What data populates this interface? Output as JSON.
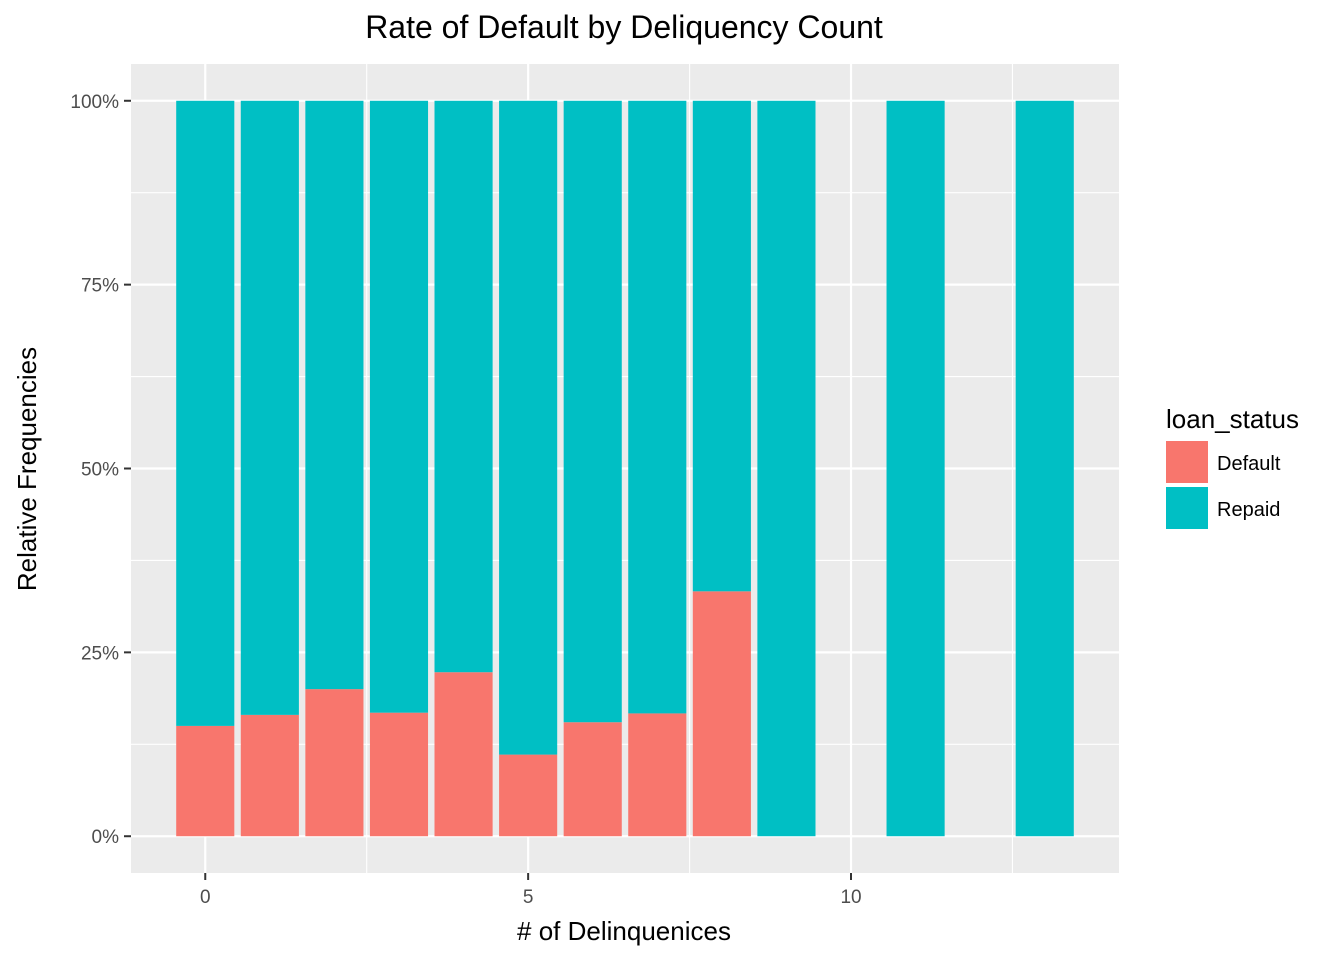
{
  "chart_data": {
    "type": "bar",
    "stacked": true,
    "normalized": true,
    "title": "Rate of Default by Deliquency Count",
    "xlabel": "# of Delinquenices",
    "ylabel": "Relative Frequencies",
    "x_ticks": [
      0,
      5,
      10
    ],
    "x_tick_labels": [
      "0",
      "5",
      "10"
    ],
    "y_ticks": [
      0,
      0.25,
      0.5,
      0.75,
      1
    ],
    "y_tick_labels": [
      "0%",
      "25%",
      "50%",
      "75%",
      "100%"
    ],
    "xlim": [
      -1.15,
      14.15
    ],
    "ylim": [
      -0.05,
      1.05
    ],
    "grid": true,
    "legend": {
      "title": "loan_status",
      "position": "right",
      "entries": [
        {
          "label": "Default",
          "color": "#F8766D"
        },
        {
          "label": "Repaid",
          "color": "#00BFC4"
        }
      ]
    },
    "categories": [
      0,
      1,
      2,
      3,
      4,
      5,
      6,
      7,
      8,
      9,
      11,
      13
    ],
    "series": [
      {
        "name": "Default",
        "color": "#F8766D",
        "values": [
          0.15,
          0.165,
          0.2,
          0.168,
          0.223,
          0.111,
          0.155,
          0.167,
          0.333,
          0,
          0,
          0
        ]
      },
      {
        "name": "Repaid",
        "color": "#00BFC4",
        "values": [
          0.85,
          0.835,
          0.8,
          0.832,
          0.777,
          0.889,
          0.845,
          0.833,
          0.667,
          1,
          1,
          1
        ]
      }
    ],
    "bar_width": 0.9
  }
}
